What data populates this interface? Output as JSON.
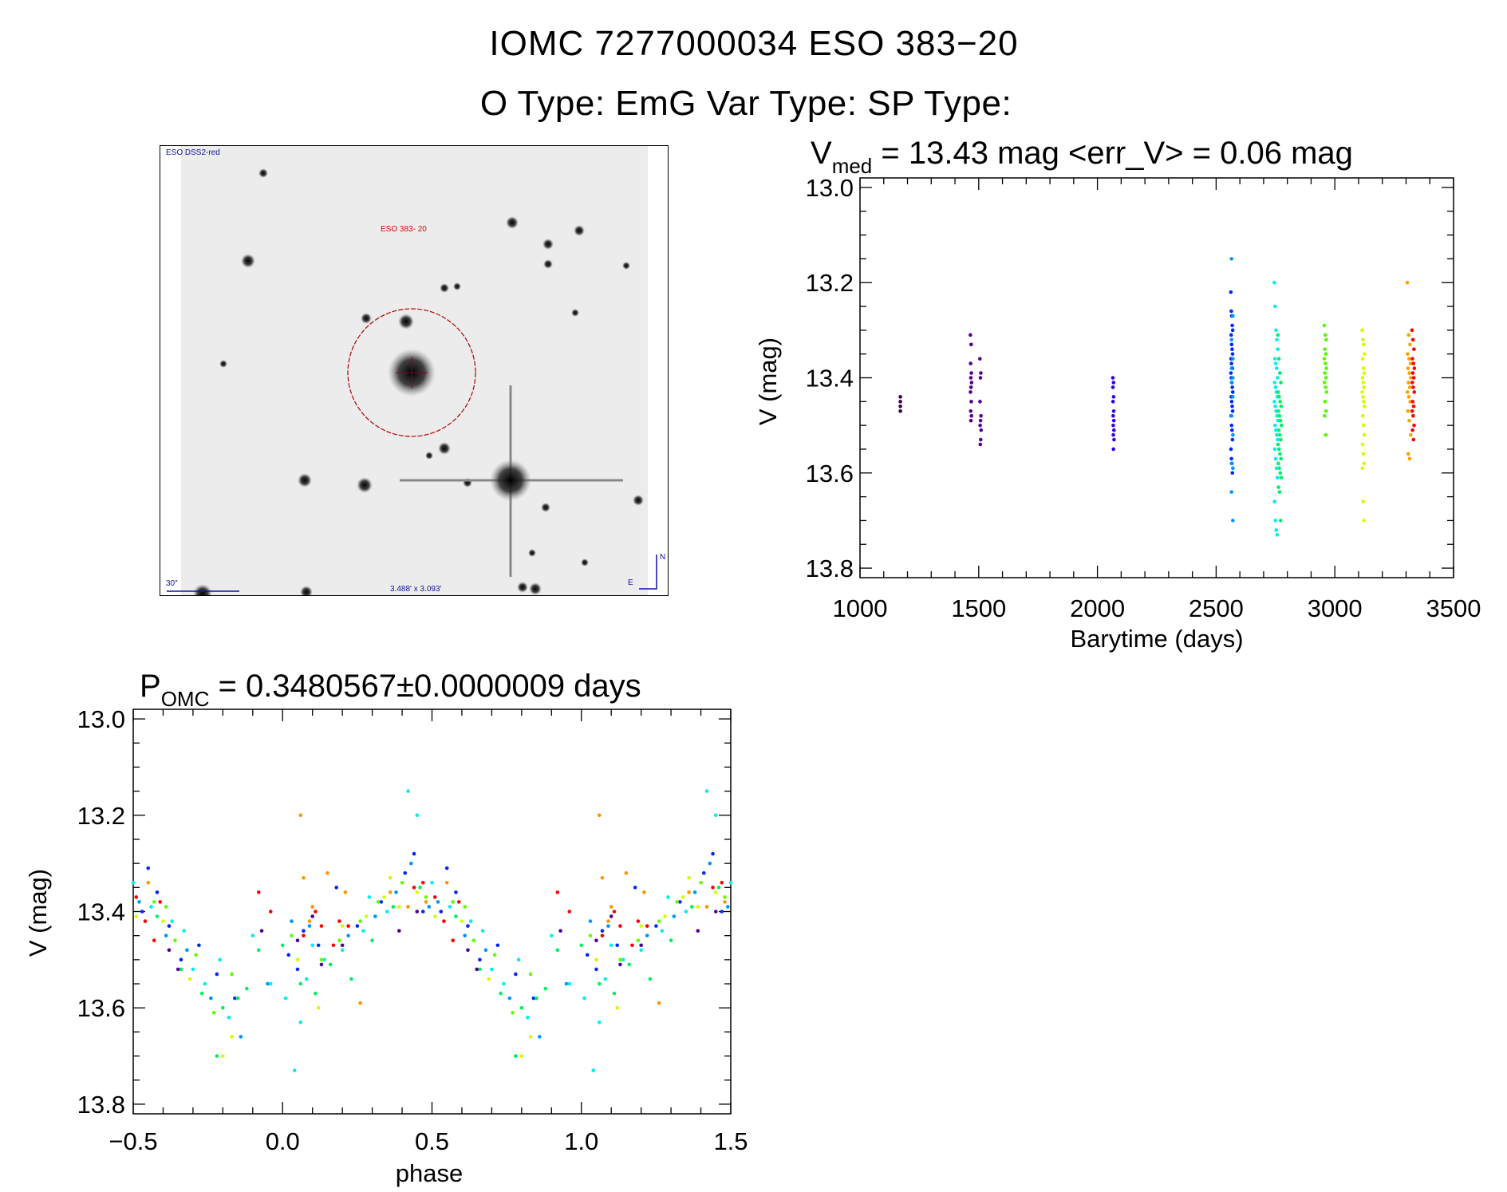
{
  "header": {
    "title": "IOMC 7277000034    ESO 383−20",
    "subtitle": "O Type: EmG   Var Type:     SP Type:"
  },
  "sky_image": {
    "survey_label": "ESO DSS2-red",
    "object_label": "ESO 383- 20",
    "scale_label": "30\"",
    "fov_label": "3.488' x 3.093'",
    "north_label": "N",
    "east_label": "E",
    "survey_color": "#1010a0",
    "object_color": "#e00000"
  },
  "chart_data": [
    {
      "type": "scatter",
      "title_main": "V",
      "title_sub": "med",
      "title_rest": " = 13.43 mag <err_V> = 0.06 mag",
      "xlabel": "Barytime (days)",
      "ylabel": "V (mag)",
      "xlim": [
        1000,
        3500
      ],
      "ylim": [
        12.98,
        13.82
      ],
      "y_reversed": true,
      "xticks": [
        1000,
        1500,
        2000,
        2500,
        3000,
        3500
      ],
      "xtick_labels": [
        "1000",
        "1500",
        "2000",
        "2500",
        "3000",
        "3500"
      ],
      "yticks": [
        13.0,
        13.2,
        13.4,
        13.6,
        13.8
      ],
      "ytick_labels": [
        "13.0",
        "13.2",
        "13.4",
        "13.6",
        "13.8"
      ],
      "x_minor": 100,
      "y_minor": 0.05,
      "groups": [
        {
          "color": "#3c0046",
          "t": [
            1170,
            1170
          ],
          "mags": [
            13.44,
            13.45,
            13.46,
            13.47
          ]
        },
        {
          "color": "#55008c",
          "t": [
            1465,
            1470
          ],
          "mags": [
            13.31,
            13.33,
            13.37,
            13.39,
            13.4,
            13.41,
            13.42,
            13.43,
            13.45,
            13.47,
            13.48,
            13.49
          ]
        },
        {
          "color": "#5a0096",
          "t": [
            1505,
            1510
          ],
          "mags": [
            13.36,
            13.39,
            13.4,
            13.45,
            13.48,
            13.49,
            13.5,
            13.51,
            13.53,
            13.54
          ]
        },
        {
          "color": "#3200e6",
          "t": [
            2065,
            2070
          ],
          "mags": [
            13.4,
            13.41,
            13.42,
            13.44,
            13.45,
            13.47,
            13.48,
            13.49,
            13.5,
            13.51,
            13.52,
            13.53,
            13.55
          ]
        },
        {
          "color": "#0028ff",
          "t": [
            2562,
            2570
          ],
          "mags": [
            13.22,
            13.26,
            13.27,
            13.29,
            13.3,
            13.31,
            13.33,
            13.34,
            13.35,
            13.36,
            13.37,
            13.38,
            13.38,
            13.39,
            13.4,
            13.41,
            13.42,
            13.43,
            13.44,
            13.45,
            13.46,
            13.47,
            13.48,
            13.5,
            13.51,
            13.53,
            13.55,
            13.57,
            13.58,
            13.6
          ]
        },
        {
          "color": "#0096ff",
          "t": [
            2565,
            2575
          ],
          "mags": [
            13.15,
            13.27,
            13.32,
            13.36,
            13.38,
            13.4,
            13.41,
            13.44,
            13.48,
            13.52,
            13.58,
            13.59,
            13.64,
            13.7
          ]
        },
        {
          "color": "#00f0f0",
          "t": [
            2745,
            2760
          ],
          "mags": [
            13.2,
            13.25,
            13.3,
            13.32,
            13.34,
            13.36,
            13.37,
            13.38,
            13.4,
            13.41,
            13.42,
            13.43,
            13.44,
            13.45,
            13.46,
            13.47,
            13.48,
            13.49,
            13.5,
            13.51,
            13.52,
            13.53,
            13.55,
            13.57,
            13.59,
            13.61,
            13.66,
            13.7,
            13.72,
            13.73
          ]
        },
        {
          "color": "#00f064",
          "t": [
            2760,
            2775
          ],
          "mags": [
            13.31,
            13.36,
            13.39,
            13.41,
            13.43,
            13.44,
            13.45,
            13.46,
            13.47,
            13.48,
            13.49,
            13.5,
            13.51,
            13.52,
            13.53,
            13.54,
            13.55,
            13.56,
            13.57,
            13.58,
            13.59,
            13.6,
            13.61,
            13.63,
            13.64,
            13.7
          ]
        },
        {
          "color": "#50ff00",
          "t": [
            2955,
            2965
          ],
          "mags": [
            13.29,
            13.31,
            13.32,
            13.34,
            13.35,
            13.36,
            13.37,
            13.38,
            13.39,
            13.4,
            13.41,
            13.42,
            13.43,
            13.45,
            13.47,
            13.48,
            13.52
          ]
        },
        {
          "color": "#d2ff00",
          "t": [
            3115,
            3125
          ],
          "mags": [
            13.3,
            13.32,
            13.33,
            13.35,
            13.36,
            13.38,
            13.39,
            13.4,
            13.41,
            13.42,
            13.43,
            13.44,
            13.45,
            13.46,
            13.48,
            13.5,
            13.52,
            13.54,
            13.56,
            13.58,
            13.59,
            13.66,
            13.7
          ]
        },
        {
          "color": "#ffa000",
          "t": [
            3305,
            3320
          ],
          "mags": [
            13.2,
            13.31,
            13.33,
            13.35,
            13.36,
            13.37,
            13.38,
            13.39,
            13.4,
            13.41,
            13.42,
            13.43,
            13.44,
            13.45,
            13.47,
            13.49,
            13.52,
            13.56,
            13.57
          ]
        },
        {
          "color": "#ff0000",
          "t": [
            3325,
            3335
          ],
          "mags": [
            13.3,
            13.32,
            13.34,
            13.36,
            13.37,
            13.38,
            13.39,
            13.4,
            13.41,
            13.42,
            13.43,
            13.45,
            13.46,
            13.47,
            13.48,
            13.5,
            13.51,
            13.53
          ]
        }
      ]
    },
    {
      "type": "scatter",
      "title_main": "P",
      "title_sub": "OMC",
      "title_rest": " = 0.3480567±0.0000009 days",
      "xlabel": "phase",
      "ylabel": "V (mag)",
      "xlim": [
        -0.5,
        1.5
      ],
      "ylim": [
        12.98,
        13.82
      ],
      "y_reversed": true,
      "xticks": [
        -0.5,
        0.0,
        0.5,
        1.0,
        1.5
      ],
      "xtick_labels": [
        "−0.5",
        "0.0",
        "0.5",
        "1.0",
        "1.5"
      ],
      "yticks": [
        13.0,
        13.2,
        13.4,
        13.6,
        13.8
      ],
      "ytick_labels": [
        "13.0",
        "13.2",
        "13.4",
        "13.6",
        "13.8"
      ],
      "x_minor": 0.1,
      "y_minor": 0.05,
      "phase_repeat": true,
      "groups": [
        {
          "color": "#0028ff",
          "points": [
            [
              0.02,
              13.49
            ],
            [
              0.05,
              13.52
            ],
            [
              0.07,
              13.44
            ],
            [
              0.12,
              13.47
            ],
            [
              0.18,
              13.35
            ],
            [
              0.25,
              13.43
            ],
            [
              0.33,
              13.38
            ],
            [
              0.41,
              13.32
            ],
            [
              0.44,
              13.28
            ],
            [
              0.47,
              13.4
            ],
            [
              0.55,
              13.31
            ],
            [
              0.58,
              13.36
            ],
            [
              0.62,
              13.43
            ],
            [
              0.66,
              13.5
            ],
            [
              0.72,
              13.47
            ],
            [
              0.78,
              13.53
            ],
            [
              0.84,
              13.58
            ],
            [
              0.53,
              13.4
            ]
          ]
        },
        {
          "color": "#0096ff",
          "points": [
            [
              0.03,
              13.42
            ],
            [
              0.09,
              13.43
            ],
            [
              0.22,
              13.45
            ],
            [
              0.31,
              13.41
            ],
            [
              0.38,
              13.36
            ],
            [
              0.43,
              13.3
            ],
            [
              0.49,
              13.39
            ],
            [
              0.52,
              13.38
            ],
            [
              0.61,
              13.45
            ],
            [
              0.68,
              13.48
            ],
            [
              0.76,
              13.58
            ],
            [
              0.86,
              13.66
            ],
            [
              0.95,
              13.55
            ]
          ]
        },
        {
          "color": "#00f0f0",
          "points": [
            [
              0.01,
              13.58
            ],
            [
              0.04,
              13.73
            ],
            [
              0.06,
              13.63
            ],
            [
              0.1,
              13.47
            ],
            [
              0.14,
              13.5
            ],
            [
              0.2,
              13.48
            ],
            [
              0.27,
              13.44
            ],
            [
              0.35,
              13.4
            ],
            [
              0.42,
              13.15
            ],
            [
              0.45,
              13.2
            ],
            [
              0.5,
              13.34
            ],
            [
              0.56,
              13.39
            ],
            [
              0.63,
              13.42
            ],
            [
              0.67,
              13.44
            ],
            [
              0.7,
              13.52
            ],
            [
              0.74,
              13.55
            ],
            [
              0.79,
              13.5
            ],
            [
              0.82,
              13.62
            ],
            [
              0.9,
              13.45
            ],
            [
              0.96,
              13.55
            ],
            [
              0.08,
              13.54
            ],
            [
              0.29,
              13.37
            ]
          ]
        },
        {
          "color": "#00f060",
          "points": [
            [
              0.0,
              13.47
            ],
            [
              0.06,
              13.55
            ],
            [
              0.11,
              13.57
            ],
            [
              0.16,
              13.51
            ],
            [
              0.23,
              13.54
            ],
            [
              0.3,
              13.46
            ],
            [
              0.37,
              13.39
            ],
            [
              0.46,
              13.35
            ],
            [
              0.58,
              13.41
            ],
            [
              0.66,
              13.52
            ],
            [
              0.73,
              13.57
            ],
            [
              0.8,
              13.6
            ],
            [
              0.85,
              13.58
            ],
            [
              0.88,
              13.56
            ],
            [
              0.92,
              13.48
            ],
            [
              0.78,
              13.7
            ]
          ]
        },
        {
          "color": "#60ff00",
          "points": [
            [
              0.03,
              13.45
            ],
            [
              0.13,
              13.5
            ],
            [
              0.19,
              13.46
            ],
            [
              0.26,
              13.42
            ],
            [
              0.32,
              13.38
            ],
            [
              0.4,
              13.34
            ],
            [
              0.48,
              13.37
            ],
            [
              0.57,
              13.38
            ],
            [
              0.64,
              13.46
            ],
            [
              0.71,
              13.49
            ],
            [
              0.77,
              13.61
            ],
            [
              0.83,
              13.53
            ],
            [
              0.61,
              13.39
            ]
          ]
        },
        {
          "color": "#d2ff00",
          "points": [
            [
              0.05,
              13.5
            ],
            [
              0.12,
              13.6
            ],
            [
              0.2,
              13.43
            ],
            [
              0.28,
              13.41
            ],
            [
              0.34,
              13.37
            ],
            [
              0.39,
              13.39
            ],
            [
              0.45,
              13.36
            ],
            [
              0.51,
              13.41
            ],
            [
              0.6,
              13.42
            ],
            [
              0.69,
              13.54
            ],
            [
              0.8,
              13.7
            ],
            [
              0.83,
              13.66
            ],
            [
              0.36,
              13.33
            ]
          ]
        },
        {
          "color": "#ff9600",
          "points": [
            [
              0.06,
              13.2
            ],
            [
              0.07,
              13.33
            ],
            [
              0.1,
              13.39
            ],
            [
              0.15,
              13.32
            ],
            [
              0.21,
              13.36
            ],
            [
              0.26,
              13.59
            ],
            [
              0.36,
              13.36
            ],
            [
              0.42,
              13.39
            ],
            [
              0.48,
              13.38
            ],
            [
              0.55,
              13.34
            ],
            [
              0.09,
              13.42
            ]
          ]
        },
        {
          "color": "#ff0000",
          "points": [
            [
              0.07,
              13.45
            ],
            [
              0.11,
              13.4
            ],
            [
              0.13,
              13.43
            ],
            [
              0.17,
              13.47
            ],
            [
              0.19,
              13.42
            ],
            [
              0.22,
              13.43
            ],
            [
              0.44,
              13.35
            ],
            [
              0.47,
              13.34
            ],
            [
              0.51,
              13.37
            ],
            [
              0.54,
              13.42
            ],
            [
              0.57,
              13.46
            ],
            [
              0.59,
              13.38
            ],
            [
              0.92,
              13.36
            ],
            [
              0.96,
              13.4
            ]
          ]
        },
        {
          "color": "#500090",
          "points": [
            [
              0.05,
              13.46
            ],
            [
              0.1,
              13.41
            ],
            [
              0.13,
              13.51
            ],
            [
              0.2,
              13.47
            ],
            [
              0.39,
              13.44
            ],
            [
              0.45,
              13.4
            ],
            [
              0.62,
              13.48
            ],
            [
              0.65,
              13.52
            ],
            [
              0.93,
              13.44
            ]
          ]
        }
      ]
    }
  ]
}
